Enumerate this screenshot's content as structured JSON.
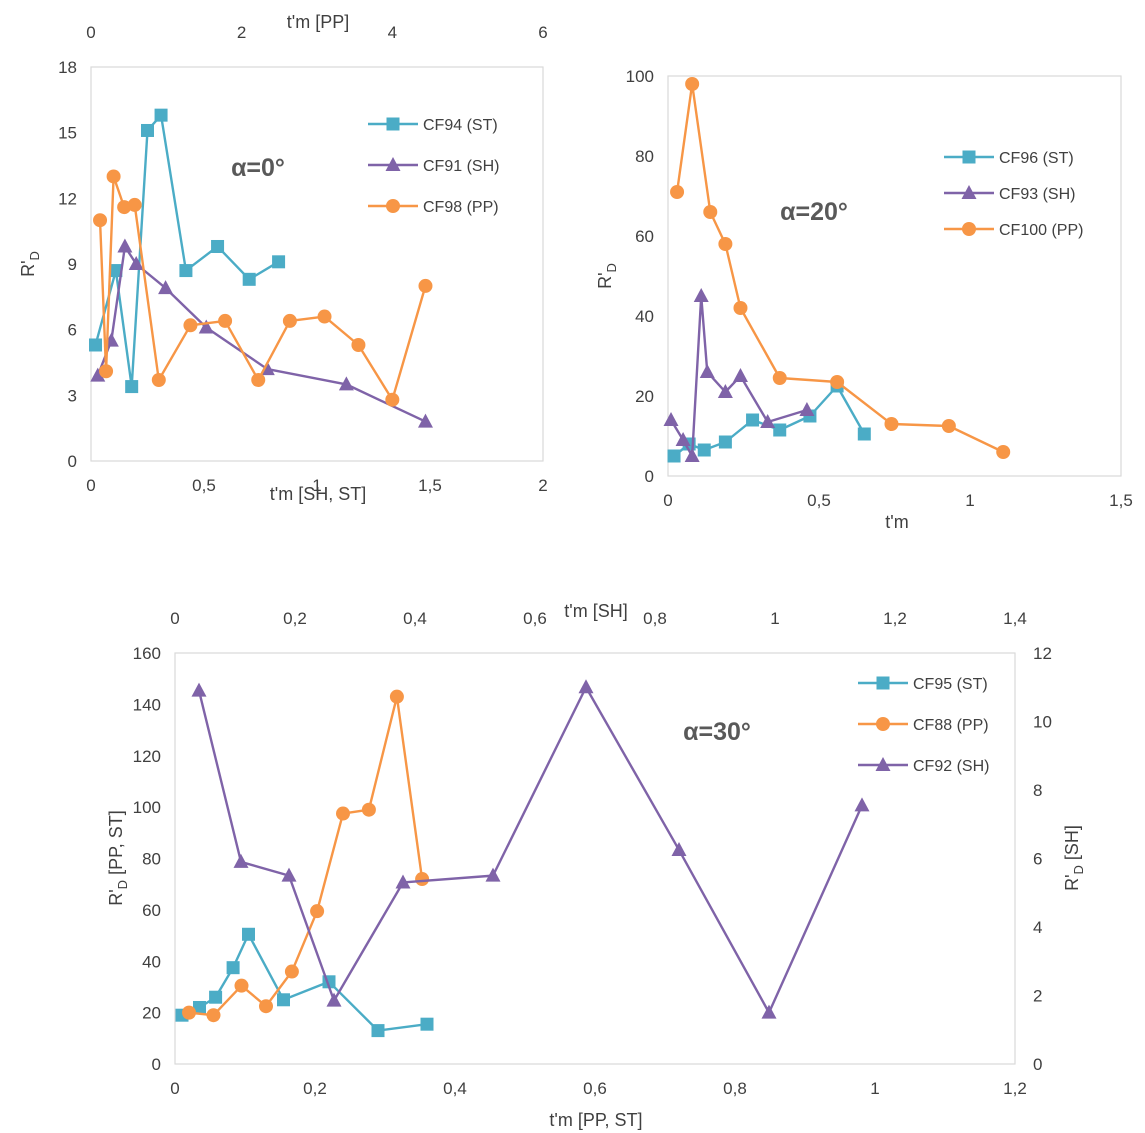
{
  "colors": {
    "ST": "#4bacc6",
    "SH": "#7f63a8",
    "PP": "#f79646",
    "axis": "#d9d9d9",
    "text": "#404040"
  },
  "chart_data": [
    {
      "type": "line",
      "annotation": "α=0°",
      "xlabel": "t'm [SH, ST]",
      "x2label": "t'm [PP]",
      "ylabel_main": "R'",
      "ylabel_sub": "D",
      "xlim": [
        0,
        2
      ],
      "x2lim": [
        0,
        6
      ],
      "ylim": [
        0,
        18
      ],
      "xticks": [
        0,
        0.5,
        1,
        1.5,
        2
      ],
      "xtick_labels": [
        "0",
        "0,5",
        "1",
        "1,5",
        "2"
      ],
      "x2ticks": [
        0,
        2,
        4,
        6
      ],
      "x2tick_labels": [
        "0",
        "2",
        "4",
        "6"
      ],
      "yticks": [
        0,
        3,
        6,
        9,
        12,
        15,
        18
      ],
      "ytick_labels": [
        "0",
        "3",
        "6",
        "9",
        "12",
        "15",
        "18"
      ],
      "grid": false,
      "legend_position": "top-right",
      "series": [
        {
          "name": "CF94 (ST)",
          "key": "ST",
          "marker": "square",
          "axis": "x",
          "x": [
            0.02,
            0.11,
            0.18,
            0.25,
            0.31,
            0.42,
            0.56,
            0.7,
            0.83
          ],
          "y": [
            5.3,
            8.7,
            3.4,
            15.1,
            15.8,
            8.7,
            9.8,
            8.3,
            9.1
          ]
        },
        {
          "name": "CF91 (SH)",
          "key": "SH",
          "marker": "triangle",
          "axis": "x",
          "x": [
            0.03,
            0.09,
            0.15,
            0.2,
            0.33,
            0.51,
            0.78,
            1.13,
            1.48
          ],
          "y": [
            3.9,
            5.5,
            9.8,
            9.0,
            7.9,
            6.1,
            4.2,
            3.5,
            1.8
          ]
        },
        {
          "name": "CF98 (PP)",
          "key": "PP",
          "marker": "circle",
          "axis": "x2",
          "x": [
            0.12,
            0.2,
            0.3,
            0.44,
            0.58,
            0.9,
            1.32,
            1.78,
            2.22,
            2.64,
            3.1,
            3.55,
            4.0,
            4.44
          ],
          "y": [
            11.0,
            4.1,
            13.0,
            11.6,
            11.7,
            3.7,
            6.2,
            6.4,
            3.7,
            6.4,
            6.6,
            5.3,
            2.8,
            8.0
          ]
        }
      ]
    },
    {
      "type": "line",
      "annotation": "α=20°",
      "xlabel": "t'm",
      "ylabel_main": "R'",
      "ylabel_sub": "D",
      "xlim": [
        0,
        1.5
      ],
      "ylim": [
        0,
        100
      ],
      "xticks": [
        0,
        0.5,
        1,
        1.5
      ],
      "xtick_labels": [
        "0",
        "0,5",
        "1",
        "1,5"
      ],
      "yticks": [
        0,
        20,
        40,
        60,
        80,
        100
      ],
      "ytick_labels": [
        "0",
        "20",
        "40",
        "60",
        "80",
        "100"
      ],
      "grid": false,
      "legend_position": "top-right",
      "series": [
        {
          "name": "CF96 (ST)",
          "key": "ST",
          "marker": "square",
          "axis": "x",
          "x": [
            0.02,
            0.07,
            0.12,
            0.19,
            0.28,
            0.37,
            0.47,
            0.56,
            0.65
          ],
          "y": [
            5.0,
            8.0,
            6.5,
            8.5,
            14.0,
            11.5,
            15.0,
            22.5,
            10.5
          ]
        },
        {
          "name": "CF93 (SH)",
          "key": "SH",
          "marker": "triangle",
          "axis": "x",
          "x": [
            0.01,
            0.05,
            0.08,
            0.11,
            0.13,
            0.19,
            0.24,
            0.33,
            0.46
          ],
          "y": [
            14.0,
            9.0,
            5.0,
            45.0,
            26.0,
            21.0,
            25.0,
            13.5,
            16.5
          ]
        },
        {
          "name": "CF100 (PP)",
          "key": "PP",
          "marker": "circle",
          "axis": "x",
          "x": [
            0.03,
            0.08,
            0.14,
            0.19,
            0.24,
            0.37,
            0.56,
            0.74,
            0.93,
            1.11
          ],
          "y": [
            71.0,
            98.0,
            66.0,
            58.0,
            42.0,
            24.5,
            23.5,
            13.0,
            12.5,
            6.0
          ]
        }
      ]
    },
    {
      "type": "line",
      "annotation": "α=30°",
      "xlabel": "t'm [PP, ST]",
      "x2label": "t'm [SH]",
      "ylabel": "R'D [PP, ST]",
      "ylabel_main": "R'",
      "ylabel_sub": "D",
      "ylabel_rest": " [PP, ST]",
      "y2label": "R'D [SH]",
      "y2label_main": "R'",
      "y2label_sub": "D",
      "y2label_rest": " [SH]",
      "xlim": [
        0,
        1.2
      ],
      "x2lim": [
        0,
        1.4
      ],
      "ylim": [
        0,
        160
      ],
      "y2lim": [
        0,
        12
      ],
      "xticks": [
        0,
        0.2,
        0.4,
        0.6,
        0.8,
        1,
        1.2
      ],
      "xtick_labels": [
        "0",
        "0,2",
        "0,4",
        "0,6",
        "0,8",
        "1",
        "1,2"
      ],
      "x2ticks": [
        0,
        0.2,
        0.4,
        0.6,
        0.8,
        1,
        1.2,
        1.4
      ],
      "x2tick_labels": [
        "0",
        "0,2",
        "0,4",
        "0,6",
        "0,8",
        "1",
        "1,2",
        "1,4"
      ],
      "yticks": [
        0,
        20,
        40,
        60,
        80,
        100,
        120,
        140,
        160
      ],
      "ytick_labels": [
        "0",
        "20",
        "40",
        "60",
        "80",
        "100",
        "120",
        "140",
        "160"
      ],
      "y2ticks": [
        0,
        2,
        4,
        6,
        8,
        10,
        12
      ],
      "y2tick_labels": [
        "0",
        "2",
        "4",
        "6",
        "8",
        "10",
        "12"
      ],
      "grid": false,
      "legend_position": "top-right",
      "series": [
        {
          "name": "CF95 (ST)",
          "key": "ST",
          "marker": "square",
          "xaxis": "x",
          "yaxis": "y",
          "x": [
            0.01,
            0.035,
            0.058,
            0.083,
            0.105,
            0.155,
            0.22,
            0.29,
            0.36
          ],
          "y": [
            19,
            22,
            26,
            37.5,
            50.5,
            25,
            32,
            13,
            15.5
          ]
        },
        {
          "name": "CF88 (PP)",
          "key": "PP",
          "marker": "circle",
          "xaxis": "x",
          "yaxis": "y",
          "x": [
            0.02,
            0.055,
            0.095,
            0.13,
            0.167,
            0.203,
            0.24,
            0.277,
            0.317,
            0.353
          ],
          "y": [
            20,
            19,
            30.5,
            22.5,
            36,
            59.5,
            97.5,
            99,
            143,
            72
          ]
        },
        {
          "name": "CF92 (SH)",
          "key": "SH",
          "marker": "triangle",
          "xaxis": "x2",
          "yaxis": "y2",
          "x": [
            0.04,
            0.11,
            0.19,
            0.265,
            0.38,
            0.53,
            0.685,
            0.84,
            0.99,
            1.145
          ],
          "y": [
            10.9,
            5.9,
            5.5,
            1.85,
            5.3,
            5.5,
            11.0,
            6.25,
            1.5,
            7.55
          ]
        }
      ]
    }
  ]
}
